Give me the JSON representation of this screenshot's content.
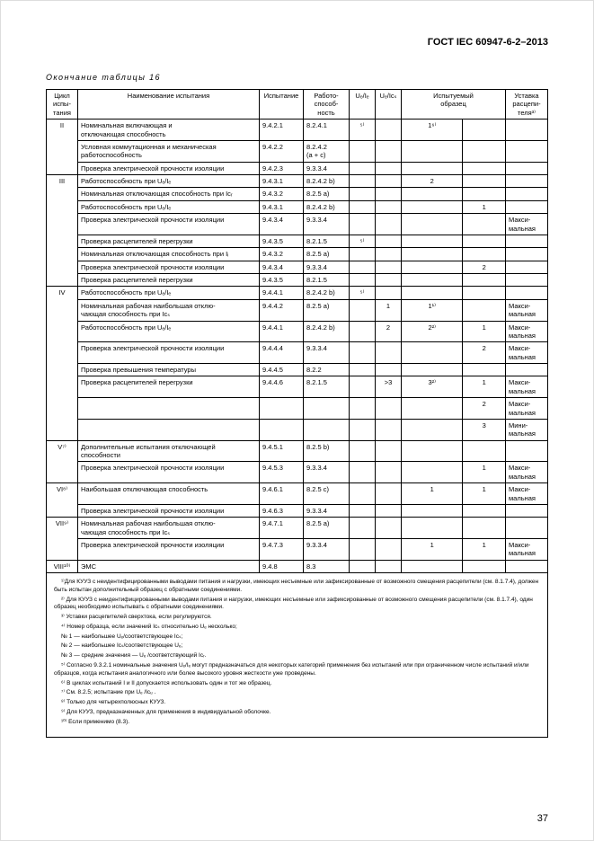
{
  "doc_header": "ГОСТ IEC 60947-6-2–2013",
  "table_caption": "Окончание таблицы 16",
  "page_number": "37",
  "columns": {
    "c1": "Цикл испы-\nтания",
    "c2": "Наименование испытания",
    "c3": "Испытание",
    "c4": "Работо-\nспособ-\nность",
    "c5": "Uₑ/Iₑ",
    "c6": "Uₑ/Icₛ",
    "c7": "Испытуемый\nобразец",
    "c8": "Уставка\nрасцепи-\nтеля³⁾"
  },
  "cycles": {
    "II": {
      "rows": [
        {
          "name": "Номинальная включающая и\nотключающая способность",
          "test": "9.4.2.1",
          "work": "8.2.4.1",
          "c5": "⁵⁾",
          "samp1": "1⁶⁾"
        },
        {
          "name": "Условная коммутационная и механическая\nработоспособность",
          "test": "9.4.2.2",
          "work": "8.2.4.2\n(a + c)"
        },
        {
          "name": "Проверка электрической прочности изоляции",
          "test": "9.4.2.3",
          "work": "9.3.3.4"
        }
      ]
    },
    "III": {
      "rows": [
        {
          "name": "Работоспособность при Uₑ/Iₑ",
          "test": "9.4.3.1",
          "work": "8.2.4.2 b)",
          "samp1": "2"
        },
        {
          "name": "Номинальная отключающая способность при Icᵣ",
          "test": "9.4.3.2",
          "work": "8.2.5 a)"
        },
        {
          "name": "Работоспособность при Uₑ/Iₑ",
          "test": "9.4.3.1",
          "work": "8.2.4.2 b)",
          "samp2": "1"
        },
        {
          "name": "Проверка электрической прочности изоляции",
          "test": "9.4.3.4",
          "work": "9.3.3.4",
          "set": "Макси-\nмальная"
        },
        {
          "name": "Проверка расцепителей перегрузки",
          "test": "9.4.3.5",
          "work": "8.2.1.5",
          "c5": "⁵⁾"
        },
        {
          "name": "Номинальная отключающая способность при Iᵢ",
          "test": "9.4.3.2",
          "work": "8.2.5 a)"
        },
        {
          "name": "Проверка электрической прочности изоляции",
          "test": "9.4.3.4",
          "work": "9.3.3.4",
          "samp2": "2"
        },
        {
          "name": "Проверка расцепителей перегрузки",
          "test": "9.4.3.5",
          "work": "8.2.1.5"
        }
      ]
    },
    "IV": {
      "rows": [
        {
          "name": "Работоспособность при Uₑ/Iₑ",
          "test": "9.4.4.1",
          "work": "8.2.4.2 b)",
          "c5": "⁵⁾"
        },
        {
          "name": "Номинальная рабочая наибольшая отклю-\nчающая способность при Icₛ",
          "test": "9.4.4.2",
          "work": "8.2.5 a)",
          "c6": "1",
          "samp1": "1¹⁾",
          "set": "Макси-\nмальная"
        },
        {
          "name": "Работоспособность при Uₑ/Iₑ",
          "test": "9.4.4.1",
          "work": "8.2.4.2 b)",
          "c6": "2",
          "samp1": "2²⁾",
          "samp2": "1",
          "set": "Макси-\nмальная"
        },
        {
          "name": "Проверка электрической прочности изоляции",
          "test": "9.4.4.4",
          "work": "9.3.3.4",
          "samp2": "2",
          "set": "Макси-\nмальная"
        },
        {
          "name": "Проверка превышения температуры",
          "test": "9.4.4.5",
          "work": "8.2.2"
        },
        {
          "name": "Проверка расцепителей перегрузки",
          "test": "9.4.4.6",
          "work": "8.2.1.5",
          "c6": ">3",
          "samp1": "3²⁾",
          "samp2": "1",
          "set": "Макси-\nмальная"
        },
        {
          "name": "",
          "test": "",
          "work": "",
          "samp2": "2",
          "set": "Макси-\nмальная"
        },
        {
          "name": "",
          "test": "",
          "work": "",
          "samp2": "3",
          "set": "Мини-\nмальная"
        }
      ]
    },
    "V": {
      "label": "V⁷⁾",
      "rows": [
        {
          "name": "Дополнительные испытания отключающей\nспособности",
          "test": "9.4.5.1",
          "work": "8.2.5 b)"
        },
        {
          "name": "Проверка электрической прочности изоляции",
          "test": "9.4.5.3",
          "work": "9.3.3.4",
          "samp2": "1",
          "set": "Макси-\nмальная"
        }
      ]
    },
    "VI": {
      "label": "VI⁸⁾",
      "rows": [
        {
          "name": "Наибольшая отключающая способность",
          "test": "9.4.6.1",
          "work": "8.2.5 c)",
          "samp1": "1",
          "samp2": "1",
          "set": "Макси-\nмальная"
        },
        {
          "name": "Проверка электрической прочности изоляции",
          "test": "9.4.6.3",
          "work": "9.3.3.4"
        }
      ]
    },
    "VII": {
      "label": "VII⁹⁾",
      "rows": [
        {
          "name": "Номинальная рабочая наибольшая отклю-\nчающая способность при Icₛ",
          "test": "9.4.7.1",
          "work": "8.2.5 a)"
        },
        {
          "name": "Проверка электрической прочности изоляции",
          "test": "9.4.7.3",
          "work": "9.3.3.4",
          "samp1": "1",
          "samp2": "1",
          "set": "Макси-\nмальная"
        }
      ]
    },
    "VIII": {
      "label": "VIII¹⁰⁾",
      "rows": [
        {
          "name": "ЭМС",
          "test": "9.4.8",
          "work": "8.3"
        }
      ]
    }
  },
  "footnotes": [
    "¹⁾Для КУУЗ с неидентифицированными выводами питания и нагрузки, имеющих несъемные или зафиксированные от возможного смещения расцепители (см. 8.1.7.4), должен быть испытан дополнительный образец с обратными соединениями.",
    "²⁾ Для КУУЗ с неидентифицированными выводами питания и нагрузки, имеющих несъемные или зафиксированные от возможного смещения расцепители (см. 8.1.7.4), один образец необходимо испытывать с обратными соединениями.",
    "³⁾ Уставки расцепителей сверхтока, если регулируются.",
    "⁴⁾ Номер образца, если значений Icₛ относительно Uₑ несколько;",
    "№ 1 — наибольшее Uₑ/соответствующее Icₛ;",
    "№ 2 — наибольшее Icₛ/соответствующее Uₑ;",
    "№ 3 — средние значения — Uₑ /соответствующий Iсᵣ.",
    "⁵⁾ Согласно 9.3.2.1 номинальные значения Uₑ/Iₑ могут предназначаться для некоторых категорий применения без испытаний или при ограниченном числе испытаний и/или образцов, когда испытания аналогичного или более высокого уровня жесткости уже проведены.",
    "⁶⁾ В циклах испытаний I и II допускается использовать один и тот же образец.",
    "⁷⁾ См. 8.2.5; испытание при Uₑ /Icᵤ .",
    "⁸⁾ Только для четырехполюсных КУУЗ.",
    "⁹⁾ Для КУУЗ, предназначенных для применения в индивидуальной оболочке.",
    "¹⁰⁾ Если применимо (8.3)."
  ]
}
